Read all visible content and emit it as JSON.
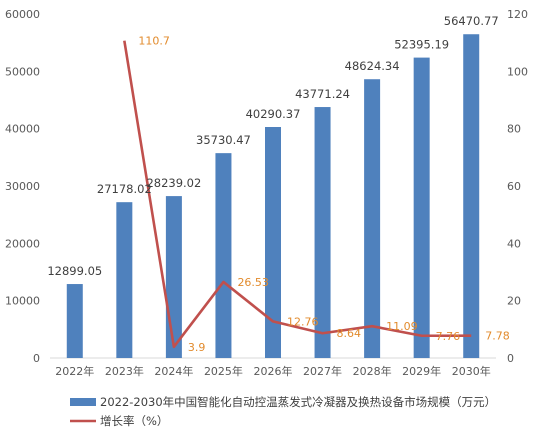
{
  "chart_data": {
    "type": "bar",
    "categories": [
      "2022年",
      "2023年",
      "2024年",
      "2025年",
      "2026年",
      "2027年",
      "2028年",
      "2029年",
      "2030年"
    ],
    "series": [
      {
        "name": "2022-2030年中国智能化自动控温蒸发式冷凝器及换热设备市场规模（万元）",
        "type": "bar",
        "axis": "left",
        "values": [
          12899.05,
          27178.02,
          28239.02,
          35730.47,
          40290.37,
          43771.24,
          48624.34,
          52395.19,
          56470.77
        ],
        "labels": [
          "12899.05",
          "27178.02",
          "28239.02",
          "35730.47",
          "40290.37",
          "43771.24",
          "48624.34",
          "52395.19",
          "56470.77"
        ]
      },
      {
        "name": "增长率（%）",
        "type": "line",
        "axis": "right",
        "values": [
          null,
          110.7,
          3.9,
          26.53,
          12.76,
          8.64,
          11.09,
          7.76,
          7.78
        ],
        "labels": [
          "",
          "110.7",
          "3.9",
          "26.53",
          "12.76",
          "8.64",
          "11.09",
          "7.76",
          "7.78"
        ]
      }
    ],
    "y_left": {
      "min": 0,
      "max": 60000,
      "step": 10000,
      "ticks": [
        "0",
        "10000",
        "20000",
        "30000",
        "40000",
        "50000",
        "60000"
      ]
    },
    "y_right": {
      "min": 0,
      "max": 120,
      "step": 20,
      "ticks": [
        "0",
        "20",
        "40",
        "60",
        "80",
        "100",
        "120"
      ]
    },
    "grid": false,
    "legend_position": "bottom",
    "colors": {
      "bar": "#4f81bd",
      "line": "#c0504d",
      "line_label": "#e28b2d"
    }
  }
}
